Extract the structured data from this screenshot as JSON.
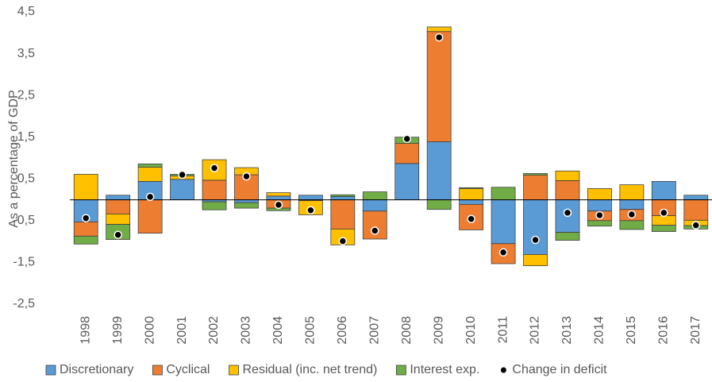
{
  "chart_data": {
    "type": "bar",
    "stacked": true,
    "y_label": "As a percentage of GDP",
    "categories": [
      "1998",
      "1999",
      "2000",
      "2001",
      "2002",
      "2003",
      "2004",
      "2005",
      "2006",
      "2007",
      "2008",
      "2009",
      "2010",
      "2011",
      "2012",
      "2013",
      "2014",
      "2015",
      "2016",
      "2017"
    ],
    "series": [
      {
        "name": "Discretionary",
        "color": "#5b9bd5",
        "kind": "bar",
        "values": [
          -0.53,
          0.11,
          0.44,
          0.49,
          -0.05,
          -0.07,
          0.09,
          0.11,
          0.08,
          -0.27,
          0.87,
          1.39,
          -0.11,
          -1.05,
          -1.31,
          -0.78,
          -0.27,
          -0.23,
          0.44,
          0.11
        ]
      },
      {
        "name": "Cyclical",
        "color": "#ed7d31",
        "kind": "bar",
        "values": [
          -0.34,
          -0.34,
          -0.8,
          0,
          0.47,
          0.6,
          -0.2,
          -0.02,
          -0.7,
          -0.67,
          0.48,
          2.64,
          -0.61,
          -0.48,
          0.59,
          0.46,
          -0.23,
          -0.27,
          -0.38,
          -0.49
        ]
      },
      {
        "name": "Residual (inc. net trend)",
        "color": "#ffc000",
        "kind": "bar",
        "values": [
          0.61,
          -0.25,
          0.34,
          0.08,
          0.49,
          0.17,
          0.08,
          -0.34,
          -0.38,
          0,
          0,
          0.11,
          0.27,
          0,
          -0.27,
          0.23,
          0.27,
          0.36,
          -0.23,
          -0.13
        ]
      },
      {
        "name": "Interest exp.",
        "color": "#70ad47",
        "kind": "bar",
        "values": [
          -0.19,
          -0.36,
          0.08,
          0.04,
          -0.19,
          -0.13,
          -0.06,
          0,
          0.04,
          0.19,
          0.15,
          -0.23,
          0.02,
          0.3,
          0.04,
          -0.19,
          -0.13,
          -0.21,
          -0.15,
          -0.08
        ]
      },
      {
        "name": "Change in deficit",
        "color": "#000000",
        "kind": "dot",
        "values": [
          -0.44,
          -0.84,
          0.07,
          0.6,
          0.76,
          0.56,
          -0.12,
          -0.25,
          -0.99,
          -0.74,
          1.46,
          3.89,
          -0.46,
          -1.26,
          -0.96,
          -0.31,
          -0.37,
          -0.35,
          -0.31,
          -0.61
        ]
      }
    ],
    "ylim": [
      -2.5,
      4.5
    ],
    "yticks": [
      {
        "value": -2.5,
        "label": "-2,5"
      },
      {
        "value": -1.5,
        "label": "-1,5"
      },
      {
        "value": -0.5,
        "label": "-0,5"
      },
      {
        "value": 0.5,
        "label": "0,5"
      },
      {
        "value": 1.5,
        "label": "1,5"
      },
      {
        "value": 2.5,
        "label": "2,5"
      },
      {
        "value": 3.5,
        "label": "3,5"
      },
      {
        "value": 4.5,
        "label": "4,5"
      }
    ],
    "grid": false,
    "legend": "bottom"
  }
}
